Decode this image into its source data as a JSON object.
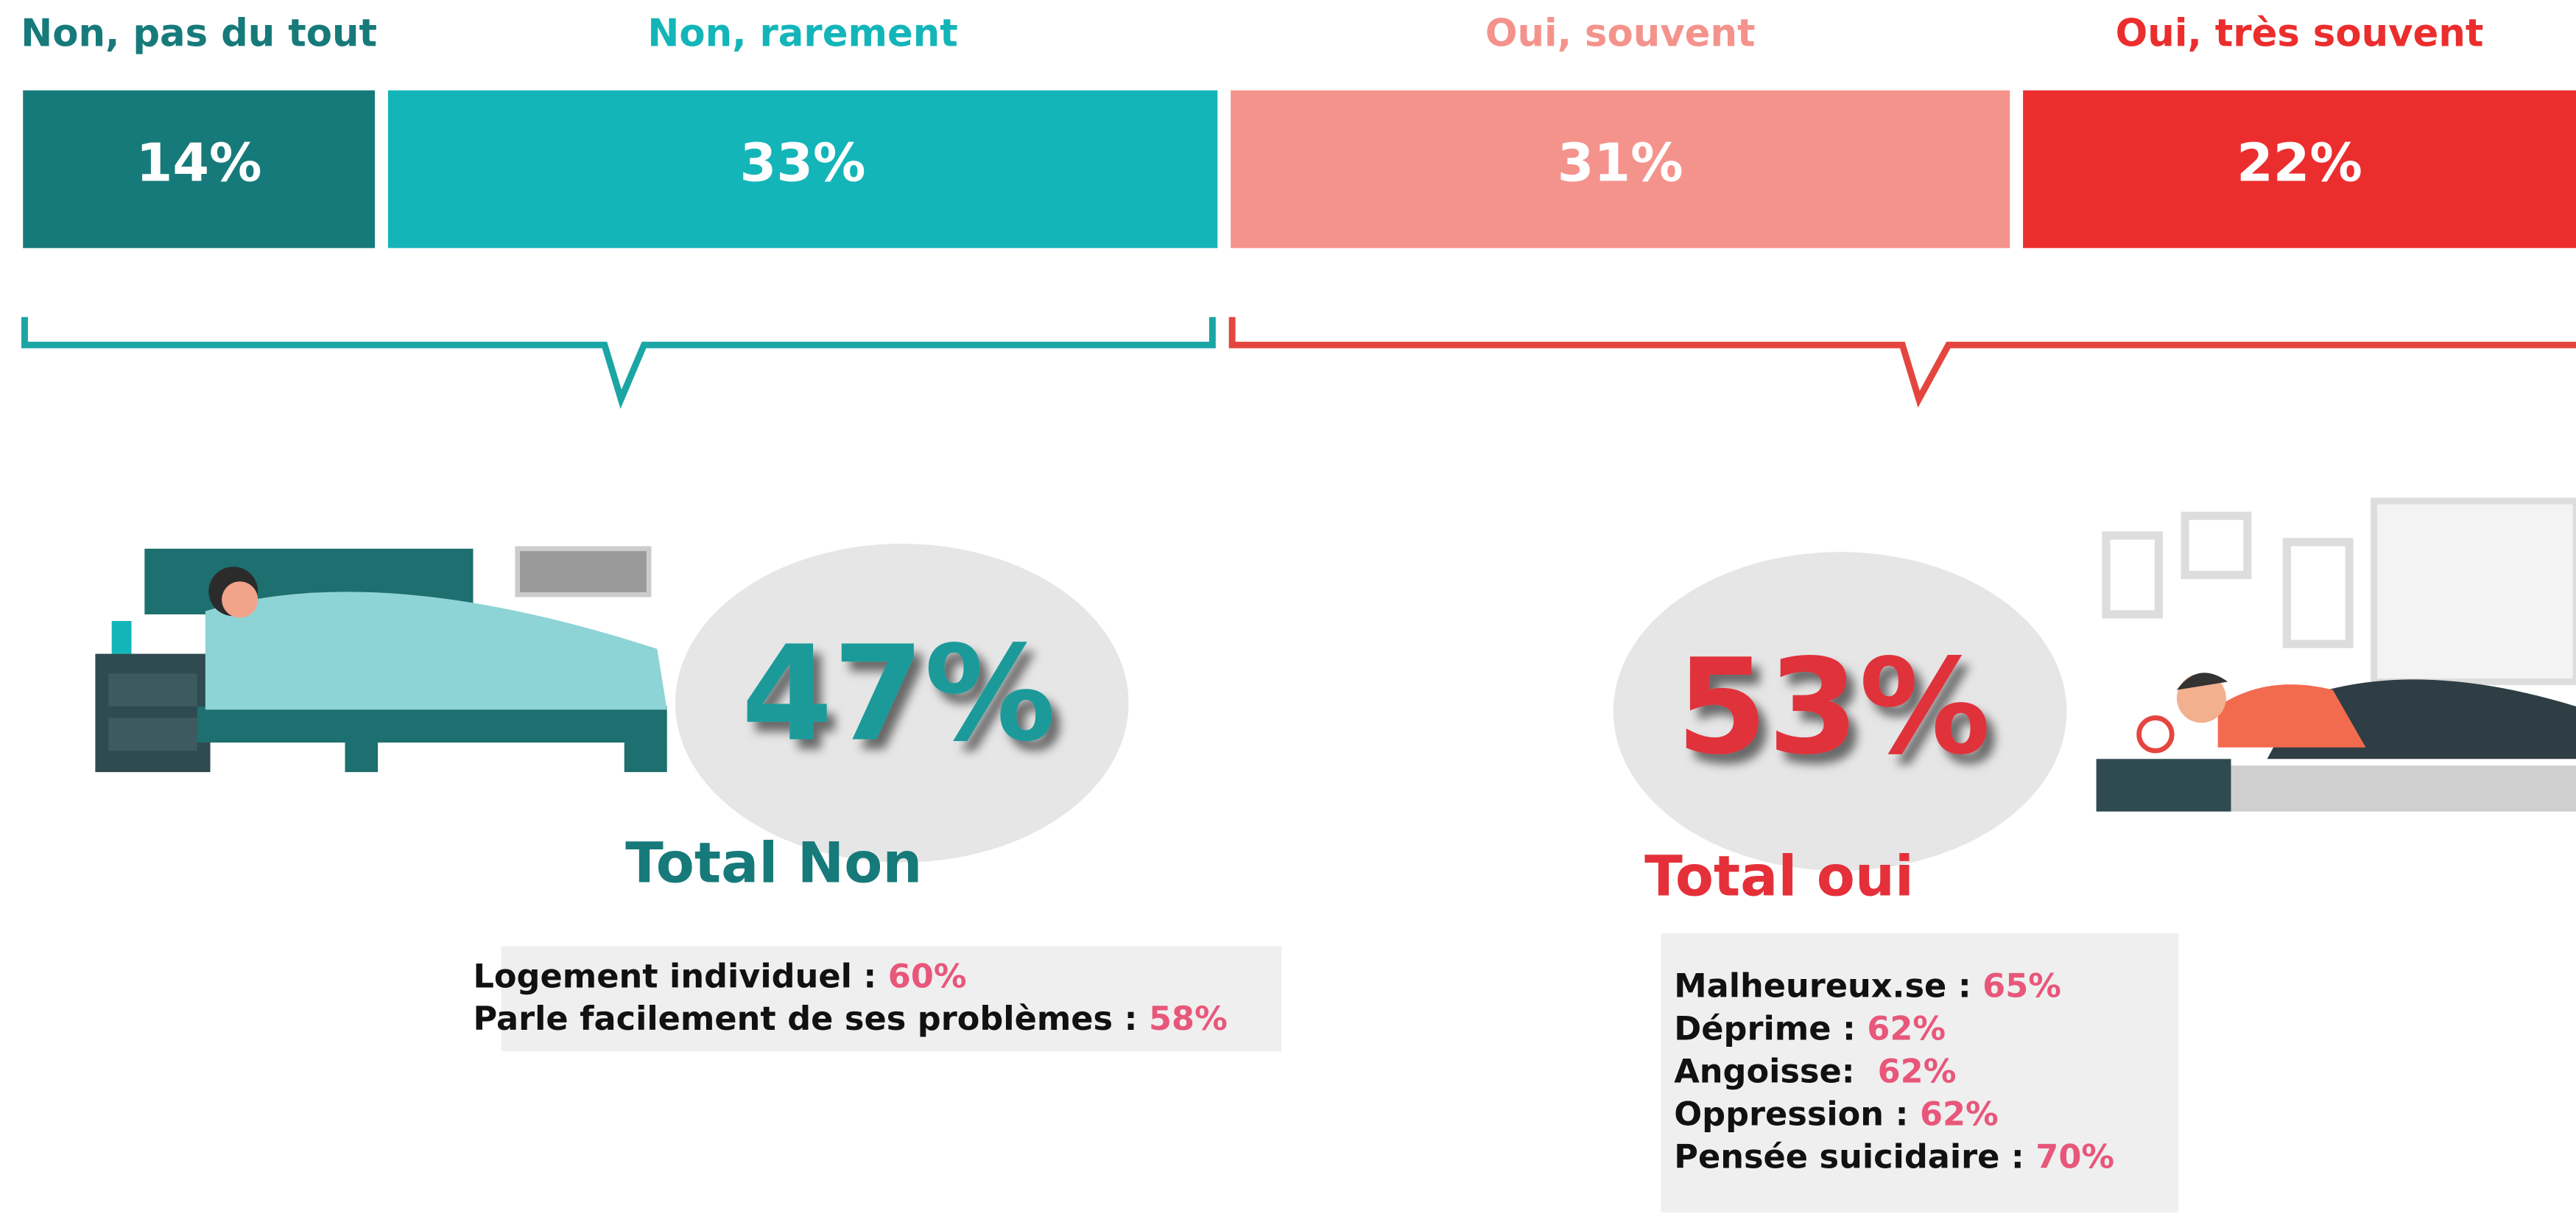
{
  "chart_data": {
    "type": "stacked-bar",
    "orientation": "horizontal",
    "series": [
      {
        "name": "Non, pas du tout",
        "color": "#177a7a",
        "values": [
          14
        ],
        "value_labels": [
          "14%"
        ]
      },
      {
        "name": "Non, rarement",
        "color": "#13b5b9",
        "values": [
          33
        ],
        "value_labels": [
          "33%"
        ]
      },
      {
        "name": "Oui, souvent",
        "color": "#f4938c",
        "values": [
          31
        ],
        "value_labels": [
          "31%"
        ]
      },
      {
        "name": "Oui, très souvent",
        "color": "#ec2d2d",
        "values": [
          22
        ],
        "value_labels": [
          "22%"
        ]
      }
    ]
  },
  "groups": [
    {
      "total": "47%",
      "title": "Total Non",
      "color": "#1a9a9a",
      "title_color": "#177a7a",
      "details": [
        {
          "label": "Logement individuel : ",
          "value": "60%"
        },
        {
          "label": "Parle facilement de ses problèmes : ",
          "value": "58%"
        }
      ]
    },
    {
      "total": "53%",
      "title": "Total oui",
      "color": "#e0303a",
      "title_color": "#e5303a",
      "details": [
        {
          "label": "Malheureux.se : ",
          "value": "65%"
        },
        {
          "label": "Déprime : ",
          "value": "62%"
        },
        {
          "label": "Angoisse:  ",
          "value": "62%"
        },
        {
          "label": "Oppression : ",
          "value": "62%"
        },
        {
          "label": "Pensée suicidaire : ",
          "value": "70%"
        }
      ]
    }
  ]
}
